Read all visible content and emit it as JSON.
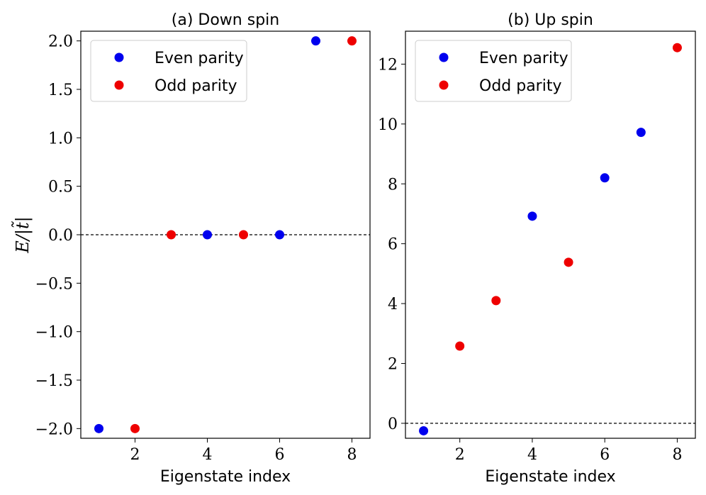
{
  "chart_data": [
    {
      "type": "scatter",
      "title": "(a) Down spin",
      "xlabel": "Eigenstate index",
      "ylabel": "E/|t̃|",
      "xlim": [
        0.5,
        8.5
      ],
      "ylim": [
        -2.1,
        2.1
      ],
      "xticks": [
        2,
        4,
        6,
        8
      ],
      "yticks": [
        -2.0,
        -1.5,
        -1.0,
        -0.5,
        0.0,
        0.5,
        1.0,
        1.5,
        2.0
      ],
      "ytick_labels": [
        "−2.0",
        "−1.5",
        "−1.0",
        "−0.5",
        "0.0",
        "0.5",
        "1.0",
        "1.5",
        "2.0"
      ],
      "hline": 0,
      "series": [
        {
          "name": "Even parity",
          "color": "#0000ee",
          "x": [
            1,
            4,
            6,
            7
          ],
          "y": [
            -2.0,
            0.0,
            0.0,
            2.0
          ]
        },
        {
          "name": "Odd parity",
          "color": "#ee0000",
          "x": [
            2,
            3,
            5,
            8
          ],
          "y": [
            -2.0,
            0.0,
            0.0,
            2.0
          ]
        }
      ],
      "legend": "top-left"
    },
    {
      "type": "scatter",
      "title": "(b) Up spin",
      "xlabel": "Eigenstate index",
      "ylabel": "",
      "xlim": [
        0.5,
        8.5
      ],
      "ylim": [
        -0.5,
        13.1
      ],
      "xticks": [
        2,
        4,
        6,
        8
      ],
      "yticks": [
        0,
        2,
        4,
        6,
        8,
        10,
        12
      ],
      "ytick_labels": [
        "0",
        "2",
        "4",
        "6",
        "8",
        "10",
        "12"
      ],
      "hline": 0,
      "series": [
        {
          "name": "Even parity",
          "color": "#0000ee",
          "x": [
            1,
            4,
            6,
            7
          ],
          "y": [
            -0.25,
            6.92,
            8.2,
            9.72
          ]
        },
        {
          "name": "Odd parity",
          "color": "#ee0000",
          "x": [
            2,
            3,
            5,
            8
          ],
          "y": [
            2.58,
            4.1,
            5.38,
            12.55
          ]
        }
      ],
      "legend": "top-left"
    }
  ]
}
